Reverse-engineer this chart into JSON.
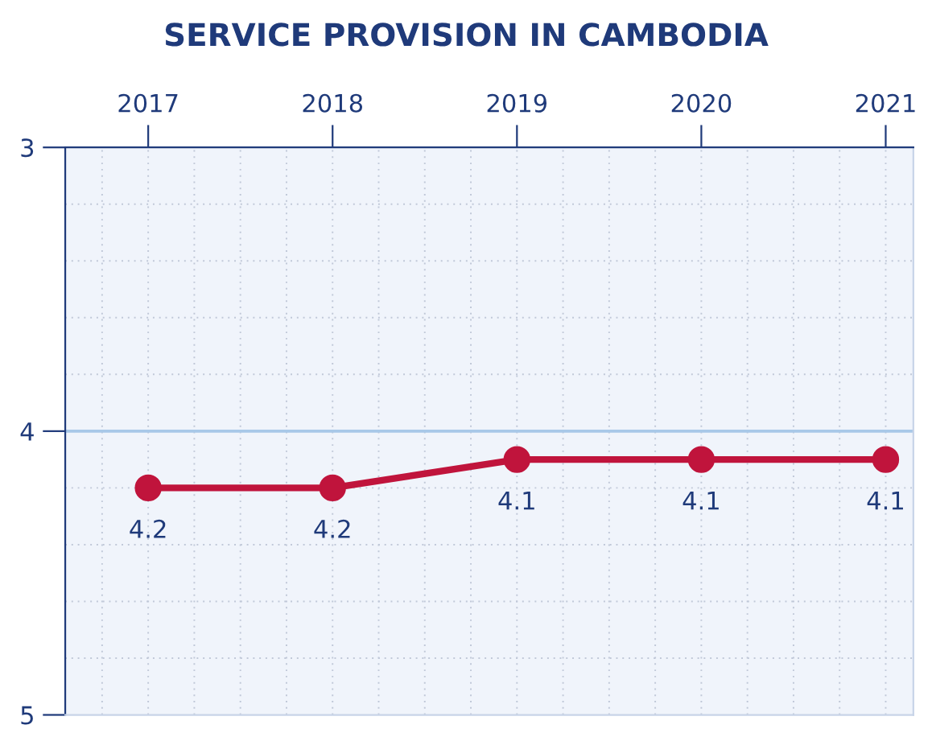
{
  "chart_data": {
    "type": "line",
    "title": "SERVICE PROVISION IN CAMBODIA",
    "categories": [
      "2017",
      "2018",
      "2019",
      "2020",
      "2021"
    ],
    "series": [
      {
        "color": "#c0143c",
        "values": [
          4.2,
          4.2,
          4.1,
          4.1,
          4.1
        ]
      }
    ],
    "ylim": [
      5,
      3
    ],
    "yticks": [
      3,
      4,
      5
    ],
    "ref_lines": [
      {
        "axis": "y",
        "value": 4,
        "color": "#a8c8e8"
      }
    ],
    "grid": true,
    "marker": "circle",
    "line_style": "solid",
    "data_labels": true
  }
}
